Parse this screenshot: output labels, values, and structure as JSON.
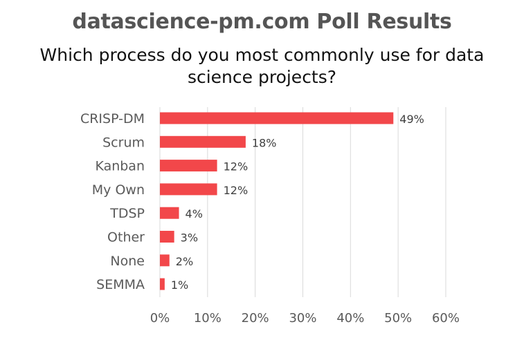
{
  "chart_data": {
    "type": "bar",
    "orientation": "horizontal",
    "title": "datascience-pm.com Poll Results",
    "subtitle": "Which process do you most commonly use for data science projects?",
    "categories": [
      "CRISP-DM",
      "Scrum",
      "Kanban",
      "My Own",
      "TDSP",
      "Other",
      "None",
      "SEMMA"
    ],
    "values": [
      49,
      18,
      12,
      12,
      4,
      3,
      2,
      1
    ],
    "data_labels": [
      "49%",
      "18%",
      "12%",
      "12%",
      "4%",
      "3%",
      "2%",
      "1%"
    ],
    "xlim": [
      0,
      60
    ],
    "x_ticks": [
      0,
      10,
      20,
      30,
      40,
      50,
      60
    ],
    "x_tick_labels": [
      "0%",
      "10%",
      "20%",
      "30%",
      "40%",
      "50%",
      "60%"
    ],
    "grid": true,
    "bar_color": "#f2474a",
    "grid_color": "#d9d9d9"
  }
}
